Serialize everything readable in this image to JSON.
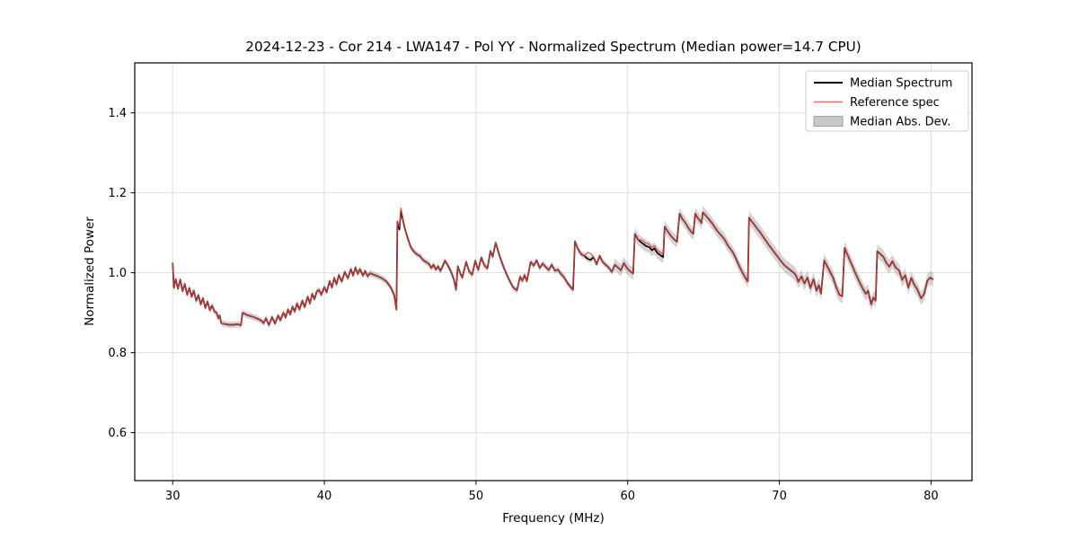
{
  "figure": {
    "title": "2024-12-23 - Cor 214 - LWA147 - Pol YY - Normalized Spectrum (Median power=14.7 CPU)"
  },
  "chart_data": {
    "type": "line",
    "title": "2024-12-23 - Cor 214 - LWA147 - Pol YY - Normalized Spectrum (Median power=14.7 CPU)",
    "xlabel": "Frequency (MHz)",
    "ylabel": "Normalized Power",
    "xlim": [
      27.5,
      82.7
    ],
    "ylim": [
      0.48,
      1.525
    ],
    "xticks": [
      30,
      40,
      50,
      60,
      70,
      80
    ],
    "xtick_labels": [
      "30",
      "40",
      "50",
      "60",
      "70",
      "80"
    ],
    "yticks": [
      0.6,
      0.8,
      1.0,
      1.2,
      1.4
    ],
    "ytick_labels": [
      "0.6",
      "0.8",
      "1.0",
      "1.2",
      "1.4"
    ],
    "grid": true,
    "colors": {
      "median_line": "#000000",
      "reference_line": "#e83e3e",
      "mad_band": "#aaaaaa",
      "grid_line": "#dddddd",
      "axes_frame": "#000000"
    },
    "legend": {
      "position": "upper right",
      "entries": [
        {
          "label": "Median Spectrum",
          "swatch": "line",
          "color": "#000000"
        },
        {
          "label": "Reference spec",
          "swatch": "line",
          "color": "#f26060"
        },
        {
          "label": "Median Abs. Dev.",
          "swatch": "patch",
          "color": "#c9c9c9",
          "border": "#a0a0a0"
        }
      ]
    },
    "series": [
      {
        "name": "Median Spectrum",
        "kind": "line",
        "points": [
          [
            30.0,
            1.025
          ],
          [
            30.08,
            0.962
          ],
          [
            30.2,
            0.984
          ],
          [
            30.35,
            0.96
          ],
          [
            30.5,
            0.983
          ],
          [
            30.65,
            0.954
          ],
          [
            30.8,
            0.972
          ],
          [
            30.95,
            0.945
          ],
          [
            31.1,
            0.962
          ],
          [
            31.25,
            0.94
          ],
          [
            31.4,
            0.955
          ],
          [
            31.55,
            0.93
          ],
          [
            31.7,
            0.944
          ],
          [
            31.85,
            0.921
          ],
          [
            32.0,
            0.936
          ],
          [
            32.15,
            0.912
          ],
          [
            32.3,
            0.928
          ],
          [
            32.45,
            0.906
          ],
          [
            32.6,
            0.918
          ],
          [
            32.75,
            0.903
          ],
          [
            32.9,
            0.9
          ],
          [
            33.0,
            0.886
          ],
          [
            33.1,
            0.893
          ],
          [
            33.2,
            0.874
          ],
          [
            33.4,
            0.872
          ],
          [
            33.7,
            0.87
          ],
          [
            34.0,
            0.87
          ],
          [
            34.3,
            0.871
          ],
          [
            34.5,
            0.868
          ],
          [
            34.6,
            0.9
          ],
          [
            34.85,
            0.895
          ],
          [
            35.1,
            0.892
          ],
          [
            35.35,
            0.889
          ],
          [
            35.6,
            0.885
          ],
          [
            35.85,
            0.88
          ],
          [
            36.0,
            0.874
          ],
          [
            36.15,
            0.886
          ],
          [
            36.35,
            0.869
          ],
          [
            36.55,
            0.889
          ],
          [
            36.75,
            0.873
          ],
          [
            36.95,
            0.893
          ],
          [
            37.1,
            0.881
          ],
          [
            37.3,
            0.9
          ],
          [
            37.45,
            0.888
          ],
          [
            37.6,
            0.908
          ],
          [
            37.75,
            0.896
          ],
          [
            37.9,
            0.915
          ],
          [
            38.05,
            0.903
          ],
          [
            38.2,
            0.923
          ],
          [
            38.35,
            0.908
          ],
          [
            38.55,
            0.93
          ],
          [
            38.7,
            0.914
          ],
          [
            38.9,
            0.94
          ],
          [
            39.05,
            0.923
          ],
          [
            39.2,
            0.947
          ],
          [
            39.35,
            0.934
          ],
          [
            39.5,
            0.953
          ],
          [
            39.65,
            0.957
          ],
          [
            39.8,
            0.945
          ],
          [
            40.0,
            0.964
          ],
          [
            40.15,
            0.951
          ],
          [
            40.35,
            0.979
          ],
          [
            40.5,
            0.963
          ],
          [
            40.65,
            0.987
          ],
          [
            40.8,
            0.971
          ],
          [
            40.95,
            0.994
          ],
          [
            41.15,
            0.978
          ],
          [
            41.35,
            1.002
          ],
          [
            41.55,
            0.986
          ],
          [
            41.75,
            1.009
          ],
          [
            41.9,
            0.993
          ],
          [
            42.05,
            1.013
          ],
          [
            42.2,
            0.997
          ],
          [
            42.35,
            1.009
          ],
          [
            42.55,
            0.993
          ],
          [
            42.7,
            1.004
          ],
          [
            42.85,
            0.991
          ],
          [
            43.0,
            0.999
          ],
          [
            43.2,
            0.996
          ],
          [
            43.4,
            0.993
          ],
          [
            43.6,
            0.99
          ],
          [
            43.8,
            0.986
          ],
          [
            44.1,
            0.978
          ],
          [
            44.4,
            0.962
          ],
          [
            44.6,
            0.945
          ],
          [
            44.75,
            0.908
          ],
          [
            44.82,
            1.128
          ],
          [
            44.95,
            1.108
          ],
          [
            45.05,
            1.155
          ],
          [
            45.3,
            1.112
          ],
          [
            45.5,
            1.086
          ],
          [
            45.7,
            1.064
          ],
          [
            45.9,
            1.053
          ],
          [
            46.1,
            1.046
          ],
          [
            46.3,
            1.042
          ],
          [
            46.5,
            1.032
          ],
          [
            46.7,
            1.027
          ],
          [
            46.9,
            1.022
          ],
          [
            47.05,
            1.012
          ],
          [
            47.2,
            1.02
          ],
          [
            47.35,
            1.008
          ],
          [
            47.5,
            1.016
          ],
          [
            47.65,
            1.004
          ],
          [
            47.8,
            1.016
          ],
          [
            47.95,
            1.03
          ],
          [
            48.15,
            1.018
          ],
          [
            48.35,
            1.003
          ],
          [
            48.55,
            0.982
          ],
          [
            48.68,
            0.957
          ],
          [
            48.8,
            1.016
          ],
          [
            49.0,
            0.995
          ],
          [
            49.1,
            0.988
          ],
          [
            49.35,
            1.027
          ],
          [
            49.55,
            1.003
          ],
          [
            49.75,
            0.995
          ],
          [
            49.95,
            1.03
          ],
          [
            50.15,
            1.007
          ],
          [
            50.35,
            1.038
          ],
          [
            50.55,
            1.018
          ],
          [
            50.75,
            1.011
          ],
          [
            50.95,
            1.054
          ],
          [
            51.1,
            1.04
          ],
          [
            51.3,
            1.075
          ],
          [
            51.55,
            1.042
          ],
          [
            51.85,
            1.011
          ],
          [
            52.15,
            0.985
          ],
          [
            52.45,
            0.963
          ],
          [
            52.7,
            0.956
          ],
          [
            52.9,
            0.99
          ],
          [
            53.05,
            0.98
          ],
          [
            53.2,
            0.994
          ],
          [
            53.35,
            0.979
          ],
          [
            53.6,
            1.027
          ],
          [
            53.8,
            1.018
          ],
          [
            54.0,
            1.031
          ],
          [
            54.2,
            1.012
          ],
          [
            54.4,
            1.023
          ],
          [
            54.6,
            1.014
          ],
          [
            54.8,
            1.007
          ],
          [
            55.0,
            1.02
          ],
          [
            55.2,
            1.005
          ],
          [
            55.4,
            1.008
          ],
          [
            55.6,
            0.997
          ],
          [
            55.8,
            0.989
          ],
          [
            56.0,
            0.976
          ],
          [
            56.2,
            0.966
          ],
          [
            56.4,
            0.957
          ],
          [
            56.52,
            1.078
          ],
          [
            56.75,
            1.057
          ],
          [
            56.95,
            1.046
          ],
          [
            57.15,
            1.042
          ],
          [
            57.35,
            1.035
          ],
          [
            57.55,
            1.032
          ],
          [
            57.75,
            1.039
          ],
          [
            57.95,
            1.021
          ],
          [
            58.15,
            1.042
          ],
          [
            58.35,
            1.027
          ],
          [
            58.55,
            1.02
          ],
          [
            58.75,
            1.013
          ],
          [
            58.95,
            1.002
          ],
          [
            59.15,
            1.02
          ],
          [
            59.35,
            1.013
          ],
          [
            59.55,
            1.006
          ],
          [
            59.75,
            1.024
          ],
          [
            59.95,
            1.012
          ],
          [
            60.15,
            1.004
          ],
          [
            60.36,
            0.998
          ],
          [
            60.47,
            1.097
          ],
          [
            60.7,
            1.082
          ],
          [
            60.9,
            1.076
          ],
          [
            61.2,
            1.067
          ],
          [
            61.43,
            1.064
          ],
          [
            61.6,
            1.056
          ],
          [
            61.75,
            1.061
          ],
          [
            61.95,
            1.05
          ],
          [
            62.15,
            1.044
          ],
          [
            62.34,
            1.039
          ],
          [
            62.44,
            1.115
          ],
          [
            62.65,
            1.103
          ],
          [
            62.85,
            1.092
          ],
          [
            63.05,
            1.084
          ],
          [
            63.25,
            1.077
          ],
          [
            63.42,
            1.148
          ],
          [
            63.6,
            1.135
          ],
          [
            63.8,
            1.125
          ],
          [
            63.97,
            1.114
          ],
          [
            64.17,
            1.103
          ],
          [
            64.33,
            1.097
          ],
          [
            64.45,
            1.148
          ],
          [
            64.6,
            1.138
          ],
          [
            64.75,
            1.131
          ],
          [
            64.87,
            1.124
          ],
          [
            64.95,
            1.151
          ],
          [
            65.15,
            1.143
          ],
          [
            65.37,
            1.133
          ],
          [
            65.6,
            1.122
          ],
          [
            65.77,
            1.112
          ],
          [
            66.0,
            1.1
          ],
          [
            66.2,
            1.092
          ],
          [
            66.4,
            1.083
          ],
          [
            66.6,
            1.068
          ],
          [
            66.8,
            1.058
          ],
          [
            66.95,
            1.05
          ],
          [
            67.15,
            1.034
          ],
          [
            67.35,
            1.017
          ],
          [
            67.55,
            1.002
          ],
          [
            67.75,
            0.988
          ],
          [
            67.92,
            0.978
          ],
          [
            68.0,
            1.138
          ],
          [
            68.15,
            1.13
          ],
          [
            68.35,
            1.12
          ],
          [
            68.55,
            1.11
          ],
          [
            68.75,
            1.1
          ],
          [
            68.95,
            1.089
          ],
          [
            69.15,
            1.078
          ],
          [
            69.35,
            1.067
          ],
          [
            69.55,
            1.057
          ],
          [
            69.75,
            1.047
          ],
          [
            69.95,
            1.037
          ],
          [
            70.15,
            1.027
          ],
          [
            70.35,
            1.018
          ],
          [
            70.55,
            1.012
          ],
          [
            70.75,
            1.006
          ],
          [
            70.95,
            1.0
          ],
          [
            71.1,
            0.993
          ],
          [
            71.25,
            0.977
          ],
          [
            71.45,
            0.991
          ],
          [
            71.65,
            0.973
          ],
          [
            71.85,
            0.988
          ],
          [
            72.05,
            0.962
          ],
          [
            72.25,
            0.984
          ],
          [
            72.45,
            0.955
          ],
          [
            72.6,
            0.969
          ],
          [
            72.75,
            0.948
          ],
          [
            72.95,
            1.031
          ],
          [
            73.15,
            1.016
          ],
          [
            73.35,
            1.002
          ],
          [
            73.55,
            0.987
          ],
          [
            73.75,
            0.963
          ],
          [
            73.95,
            0.945
          ],
          [
            74.15,
            0.941
          ],
          [
            74.3,
            1.062
          ],
          [
            74.55,
            1.04
          ],
          [
            74.8,
            1.018
          ],
          [
            75.05,
            0.996
          ],
          [
            75.3,
            0.975
          ],
          [
            75.5,
            0.961
          ],
          [
            75.7,
            0.947
          ],
          [
            75.85,
            0.955
          ],
          [
            76.05,
            0.921
          ],
          [
            76.2,
            0.938
          ],
          [
            76.35,
            0.93
          ],
          [
            76.45,
            1.054
          ],
          [
            76.65,
            1.047
          ],
          [
            76.85,
            1.04
          ],
          [
            77.05,
            1.025
          ],
          [
            77.25,
            1.015
          ],
          [
            77.45,
            1.029
          ],
          [
            77.65,
            1.014
          ],
          [
            77.9,
            1.005
          ],
          [
            78.1,
            0.982
          ],
          [
            78.3,
            0.994
          ],
          [
            78.5,
            0.963
          ],
          [
            78.7,
            0.987
          ],
          [
            78.9,
            0.97
          ],
          [
            79.1,
            0.958
          ],
          [
            79.35,
            0.936
          ],
          [
            79.55,
            0.947
          ],
          [
            79.75,
            0.98
          ],
          [
            79.95,
            0.988
          ],
          [
            80.15,
            0.983
          ]
        ]
      },
      {
        "name": "Reference spec",
        "kind": "line",
        "derived_from": "Median Spectrum",
        "offset_regions": [
          [
            44.9,
            45.2,
            0.007
          ],
          [
            57.2,
            57.6,
            0.016
          ],
          [
            60.8,
            62.4,
            0.007
          ]
        ]
      },
      {
        "name": "Median Abs. Dev.",
        "kind": "band",
        "around": "Median Spectrum",
        "halfwidth_regions": [
          [
            27.5,
            59.0,
            0.008
          ],
          [
            59.0,
            68.0,
            0.015
          ],
          [
            68.0,
            82.7,
            0.017
          ]
        ]
      }
    ]
  }
}
